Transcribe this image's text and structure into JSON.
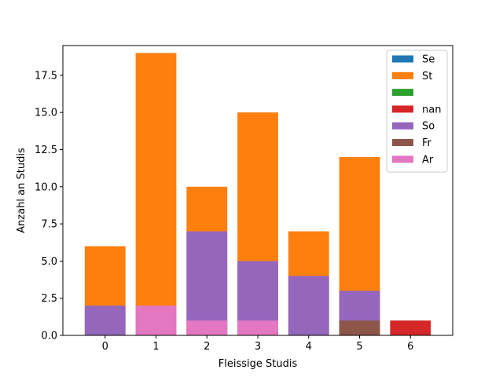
{
  "chart_data": {
    "type": "bar",
    "stacked": false,
    "categories": [
      "0",
      "1",
      "2",
      "3",
      "4",
      "5",
      "6"
    ],
    "xlabel": "Fleissige Studis",
    "ylabel": "Anzahl an Studis",
    "ylim": [
      0,
      19.5
    ],
    "yticks": [
      "0.0",
      "2.5",
      "5.0",
      "7.5",
      "10.0",
      "12.5",
      "15.0",
      "17.5"
    ],
    "ytick_values": [
      0,
      2.5,
      5,
      7.5,
      10,
      12.5,
      15,
      17.5
    ],
    "legend_position": "top-right",
    "grid": false,
    "series": [
      {
        "name": "Se",
        "color": "#1f77b4",
        "values": [
          0,
          0,
          0,
          0,
          0,
          0,
          0
        ]
      },
      {
        "name": "St",
        "color": "#ff7f0e",
        "values": [
          6,
          19,
          10,
          15,
          7,
          12,
          0
        ]
      },
      {
        "name": "",
        "color": "#2ca02c",
        "values": [
          0,
          0,
          0,
          0,
          0,
          0,
          0
        ]
      },
      {
        "name": "nan",
        "color": "#d62728",
        "values": [
          0,
          0,
          0,
          0,
          0,
          0,
          1
        ]
      },
      {
        "name": "So",
        "color": "#9467bd",
        "values": [
          2,
          0,
          7,
          5,
          4,
          3,
          0
        ]
      },
      {
        "name": "Fr",
        "color": "#8c564b",
        "values": [
          0,
          0,
          0,
          0,
          0,
          1,
          0
        ]
      },
      {
        "name": "Ar",
        "color": "#e377c2",
        "values": [
          0,
          2,
          1,
          1,
          0,
          0,
          0
        ]
      }
    ]
  }
}
